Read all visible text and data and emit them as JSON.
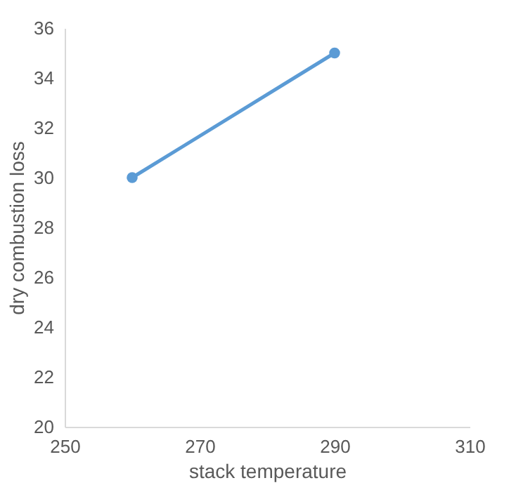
{
  "chart_data": {
    "type": "line",
    "xlabel": "stack temperature",
    "ylabel": "dry combustion loss",
    "x": [
      260,
      290
    ],
    "series": [
      {
        "color": "#5b9bd5",
        "values": [
          30,
          35
        ]
      }
    ],
    "xlim": [
      250,
      310
    ],
    "xticks": [
      250,
      270,
      290,
      310
    ],
    "ylim": [
      20,
      36
    ],
    "yticks": [
      20,
      22,
      24,
      26,
      28,
      30,
      32,
      34,
      36
    ],
    "grid": false,
    "marker": "circle",
    "line_style": "solid"
  }
}
